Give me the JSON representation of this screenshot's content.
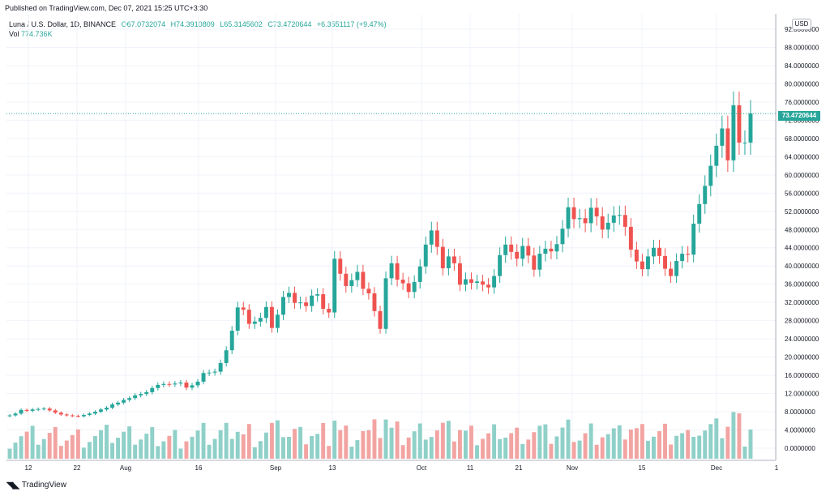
{
  "header": {
    "published": "Published on TradingView.com, Dec 07, 2021 15:25 UTC+3:30"
  },
  "legend": {
    "symbol": "Luna / U.S. Dollar, 1D, BINANCE",
    "open": "O67.0732074",
    "high": "H74.3910809",
    "low": "L65.3145602",
    "close": "C73.4720644",
    "change": "+6.3551117 (+9.47%)",
    "vol_label": "Vol",
    "vol_value": "774.736K"
  },
  "currency": "USD",
  "last_price_label": "73.4720644",
  "footer": {
    "brand": "TradingView",
    "logo": "tv-logo-icon"
  },
  "colors": {
    "up": "#26a69a",
    "down": "#ef5350",
    "up_vol": "#8fd0c8",
    "down_vol": "#f2a4a2",
    "grid": "#f0f3fa"
  },
  "chart_data": {
    "type": "candlestick",
    "title": "Luna / U.S. Dollar, 1D, BINANCE",
    "ylim": [
      0,
      92
    ],
    "y_ticks": [
      "92.0000000",
      "88.0000000",
      "84.0000000",
      "80.0000000",
      "76.0000000",
      "72.0000000",
      "68.0000000",
      "64.0000000",
      "60.0000000",
      "56.0000000",
      "52.0000000",
      "48.0000000",
      "44.0000000",
      "40.0000000",
      "36.0000000",
      "32.0000000",
      "28.0000000",
      "24.0000000",
      "20.0000000",
      "16.0000000",
      "12.0000000",
      "8.0000000",
      "4.0000000",
      "0.0000000"
    ],
    "x_ticks": [
      "12",
      "22",
      "Aug",
      "16",
      "Sep",
      "13",
      "Oct",
      "11",
      "21",
      "Nov",
      "15",
      "Dec",
      "1"
    ],
    "volume_unit_note": "volume shown in lower pane",
    "series": [
      {
        "name": "close",
        "values": [
          7.2,
          7.6,
          8.4,
          8.2,
          8.5,
          8.6,
          8.7,
          8.3,
          7.8,
          7.4,
          7.2,
          7.1,
          7.0,
          7.3,
          7.6,
          8.0,
          8.5,
          8.9,
          9.6,
          10.0,
          10.6,
          11.0,
          11.6,
          11.9,
          12.3,
          13.2,
          13.9,
          14.1,
          14.0,
          14.2,
          14.4,
          13.3,
          13.8,
          14.6,
          16.5,
          16.6,
          16.8,
          18.7,
          21.5,
          25.8,
          30.9,
          30.4,
          27.3,
          27.8,
          28.6,
          31.0,
          26.4,
          29.3,
          33.2,
          34.1,
          31.9,
          32.0,
          31.2,
          33.5,
          33.8,
          30.6,
          29.8,
          41.6,
          38.3,
          35.6,
          36.9,
          38.7,
          35.0,
          34.0,
          30.1,
          26.2,
          37.3,
          40.6,
          37.0,
          36.2,
          34.3,
          36.5,
          39.9,
          44.7,
          47.8,
          44.2,
          39.5,
          42.1,
          40.6,
          35.9,
          37.1,
          36.3,
          36.6,
          35.9,
          35.3,
          37.8,
          42.4,
          44.7,
          43.1,
          41.6,
          44.4,
          42.3,
          39.2,
          42.7,
          43.8,
          43.2,
          44.8,
          48.2,
          52.9,
          50.3,
          50.5,
          49.4,
          52.8,
          50.9,
          48.0,
          49.5,
          51.1,
          51.2,
          48.6,
          43.6,
          41.0,
          39.3,
          42.1,
          44.0,
          42.2,
          39.4,
          37.8,
          41.1,
          42.7,
          42.5,
          49.3,
          53.6,
          57.6,
          62.0,
          66.4,
          70.2,
          63.2,
          75.3,
          67.1,
          67.1,
          73.5
        ]
      }
    ]
  }
}
